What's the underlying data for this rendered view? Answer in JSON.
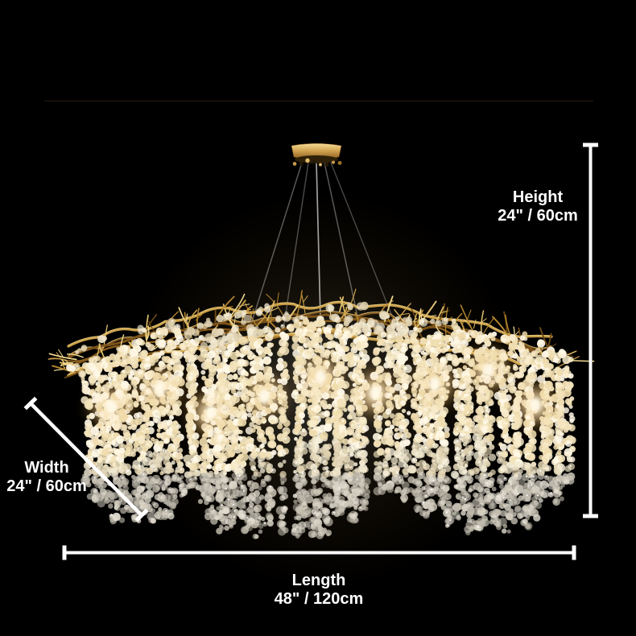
{
  "dimensions": {
    "height": {
      "label": "Height",
      "value": "24\" / 60cm"
    },
    "width": {
      "label": "Width",
      "value": "24\" / 60cm"
    },
    "length": {
      "label": "Length",
      "value": "48\" / 120cm"
    }
  },
  "colors": {
    "background": "#000000",
    "annotation_line": "#ffffff",
    "annotation_text": "#ffffff",
    "branch_gold": "#c8943c",
    "crystal": "#f2e8d2",
    "light_glow": "#ffd98f"
  }
}
